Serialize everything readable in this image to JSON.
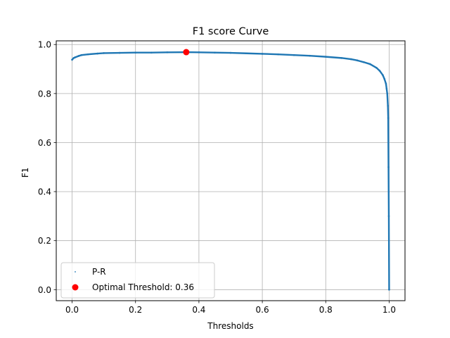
{
  "chart_data": {
    "type": "line",
    "title": "F1 score Curve",
    "xlabel": "Thresholds",
    "ylabel": "F1",
    "xlim": [
      -0.05,
      1.05
    ],
    "ylim": [
      -0.045,
      1.015
    ],
    "xticks": [
      0.0,
      0.2,
      0.4,
      0.6,
      0.8,
      1.0
    ],
    "xtick_labels": [
      "0.0",
      "0.2",
      "0.4",
      "0.6",
      "0.8",
      "1.0"
    ],
    "yticks": [
      0.0,
      0.2,
      0.4,
      0.6,
      0.8,
      1.0
    ],
    "ytick_labels": [
      "0.0",
      "0.2",
      "0.4",
      "0.6",
      "0.8",
      "1.0"
    ],
    "grid": true,
    "legend_position": "lower-left",
    "series": [
      {
        "name": "P-R",
        "style": "dotted-points",
        "color": "#1f77b4",
        "x": [
          0.0,
          0.005,
          0.01,
          0.02,
          0.03,
          0.05,
          0.08,
          0.1,
          0.15,
          0.2,
          0.25,
          0.3,
          0.36,
          0.4,
          0.45,
          0.5,
          0.55,
          0.6,
          0.65,
          0.7,
          0.75,
          0.8,
          0.85,
          0.88,
          0.9,
          0.92,
          0.94,
          0.96,
          0.97,
          0.98,
          0.985,
          0.99,
          0.992,
          0.994,
          0.996,
          0.997,
          0.998,
          0.999,
          1.0
        ],
        "y": [
          0.938,
          0.945,
          0.948,
          0.953,
          0.957,
          0.96,
          0.963,
          0.965,
          0.966,
          0.967,
          0.967,
          0.968,
          0.969,
          0.968,
          0.967,
          0.966,
          0.964,
          0.962,
          0.96,
          0.957,
          0.954,
          0.95,
          0.945,
          0.94,
          0.935,
          0.928,
          0.92,
          0.905,
          0.893,
          0.875,
          0.86,
          0.84,
          0.82,
          0.8,
          0.75,
          0.7,
          0.5,
          0.3,
          0.0
        ]
      },
      {
        "name": "Optimal Threshold: 0.36",
        "style": "marker",
        "color": "#ff0000",
        "x": [
          0.36
        ],
        "y": [
          0.969
        ]
      }
    ]
  }
}
